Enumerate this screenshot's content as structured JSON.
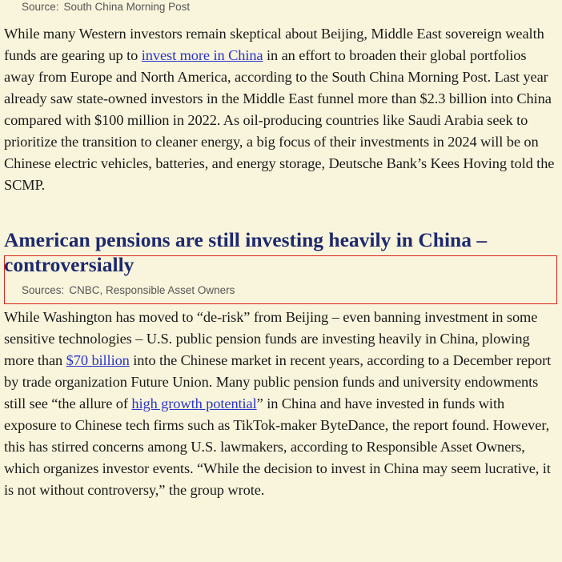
{
  "source_top": {
    "label": "Source:",
    "text": "South China Morning Post"
  },
  "paragraphs": [
    {
      "segments": [
        {
          "text": "While many Western investors remain skeptical about Beijing, Middle East sovereign wealth funds are gearing up to ",
          "link": false
        },
        {
          "text": "invest more in China",
          "link": true
        },
        {
          "text": " in an effort to broaden their global portfolios away from Europe and North America, according to the South China Morning Post. Last year already saw state-owned investors in the Middle East funnel more than $2.3 billion into China compared with $100 million in 2022. As oil-producing countries like Saudi Arabia seek to prioritize the transition to cleaner energy, a big focus of their investments in 2024 will be on Chinese electric vehicles, batteries, and energy storage, Deutsche Bank’s Kees Hoving told the SCMP.",
          "link": false
        }
      ]
    },
    {
      "segments": [
        {
          "text": "While Washington has moved to “de-risk” from Beijing – even banning investment in some sensitive technologies – U.S. public pension funds are investing heavily in China, plowing more than ",
          "link": false
        },
        {
          "text": "$70 billion",
          "link": true
        },
        {
          "text": " into the Chinese market in recent years, according to a December report by trade organization Future Union. Many public pension funds and university endowments still see “the allure of ",
          "link": false
        },
        {
          "text": "high growth potential",
          "link": true
        },
        {
          "text": "” in China and have invested in funds with exposure to Chinese tech firms such as TikTok-maker ByteDance, the report found. However, this has stirred concerns among U.S. lawmakers, according to Responsible Asset Owners, which organizes investor events. “While the decision to invest in China may seem lucrative, it is not without controversy,” the group wrote.",
          "link": false
        }
      ]
    }
  ],
  "heading": "American pensions are still investing heavily in China – controversially",
  "source_section": {
    "label": "Sources:",
    "text": "CNBC, Responsible Asset Owners"
  }
}
